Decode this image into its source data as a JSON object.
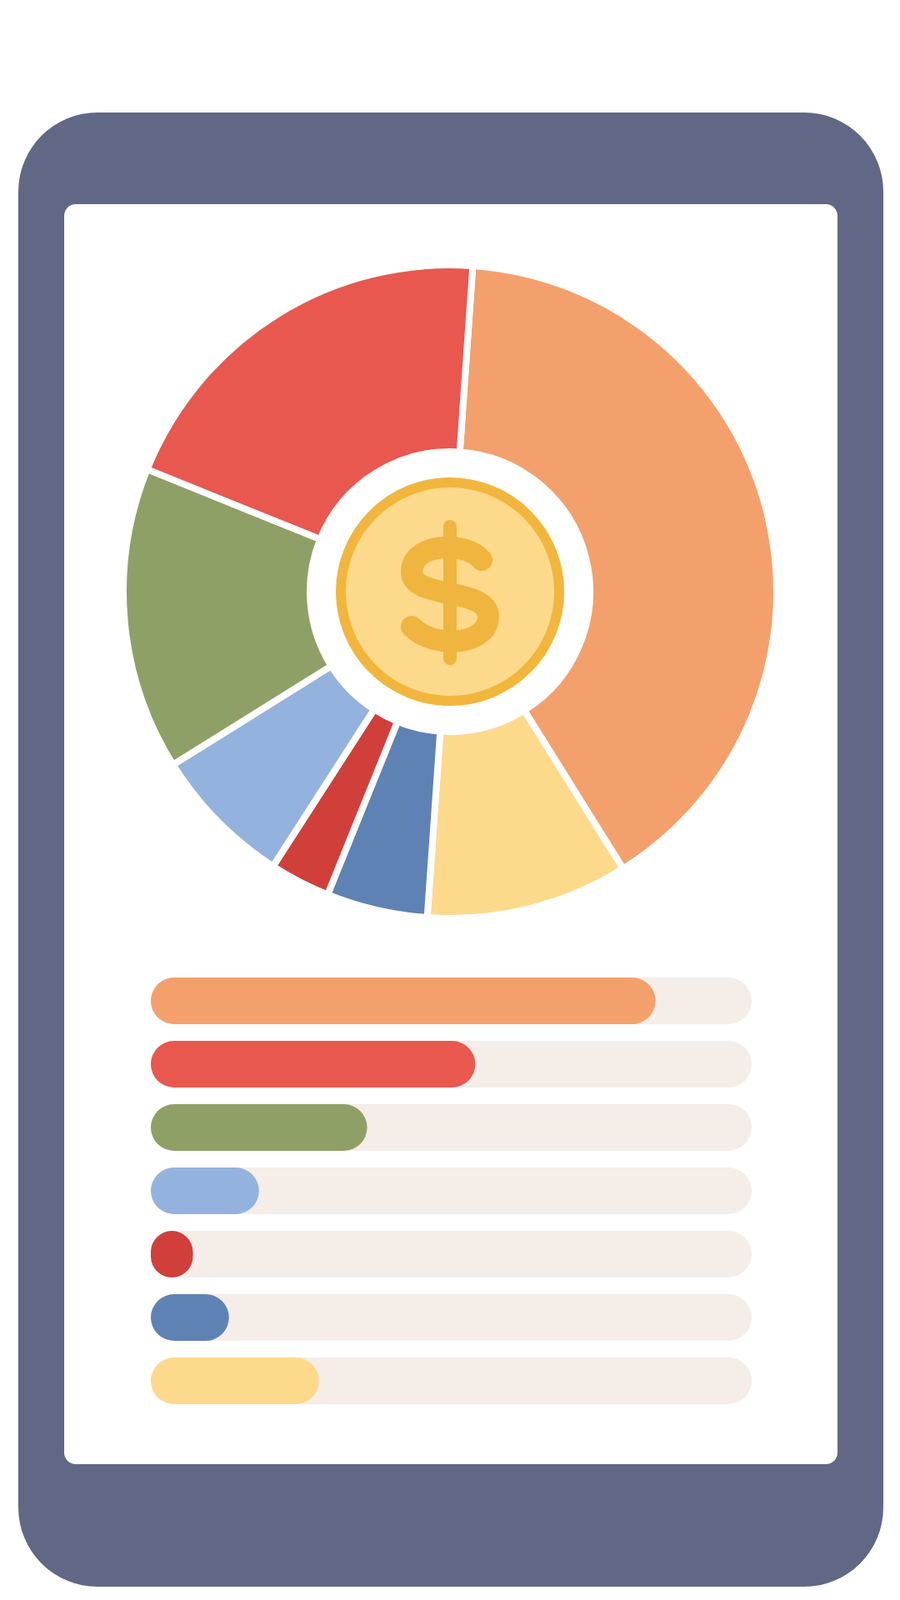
{
  "chart_data": [
    {
      "type": "pie",
      "values": [
        40,
        10,
        5,
        3,
        7,
        15,
        20
      ],
      "colors": [
        "#f4a06c",
        "#fdd98c",
        "#5f82b5",
        "#d13f3b",
        "#93b3de",
        "#8fa066",
        "#e8584f"
      ]
    },
    {
      "type": "bar",
      "orientation": "horizontal",
      "categories": [
        null,
        null,
        null,
        null,
        null,
        null,
        null
      ],
      "values": [
        84,
        54,
        36,
        18,
        7,
        13,
        28
      ],
      "colors": [
        "#f4a06c",
        "#e8584f",
        "#8fa066",
        "#93b3de",
        "#d13f3b",
        "#5f82b5",
        "#fdd98c"
      ],
      "xlim": [
        0,
        100
      ],
      "tick_labels": false
    }
  ]
}
